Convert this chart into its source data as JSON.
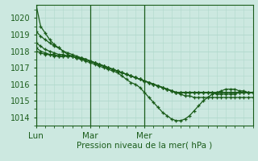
{
  "title": "Pression niveau de la mer( hPa )",
  "bg_color": "#cce8e0",
  "grid_color": "#b0d8cc",
  "line_color": "#1a5c1a",
  "ylim": [
    1013.5,
    1020.8
  ],
  "yticks": [
    1014,
    1015,
    1016,
    1017,
    1018,
    1019,
    1020
  ],
  "xtick_labels": [
    "Lun",
    "Mar",
    "Mer"
  ],
  "xtick_pos": [
    0,
    0.5,
    1.0
  ],
  "xlabel_fontsize": 7.5,
  "ylabel_fontsize": 7.0,
  "series": [
    [
      1020.8,
      1019.5,
      1019.1,
      1018.7,
      1018.4,
      1018.2,
      1018.0,
      1017.8,
      1017.7,
      1017.6,
      1017.5,
      1017.4,
      1017.3,
      1017.2,
      1017.1,
      1017.0,
      1016.9,
      1016.8,
      1016.7,
      1016.5,
      1016.3,
      1016.1,
      1016.0,
      1015.8,
      1015.5,
      1015.2,
      1014.9,
      1014.6,
      1014.3,
      1014.1,
      1013.9,
      1013.8,
      1013.8,
      1013.9,
      1014.1,
      1014.4,
      1014.7,
      1015.0,
      1015.2,
      1015.4,
      1015.5,
      1015.6,
      1015.7,
      1015.7,
      1015.7,
      1015.6,
      1015.6,
      1015.5,
      1015.5
    ],
    [
      1019.2,
      1018.9,
      1018.7,
      1018.5,
      1018.3,
      1018.2,
      1018.0,
      1017.9,
      1017.8,
      1017.7,
      1017.6,
      1017.5,
      1017.4,
      1017.3,
      1017.2,
      1017.1,
      1017.0,
      1016.9,
      1016.8,
      1016.7,
      1016.6,
      1016.5,
      1016.4,
      1016.3,
      1016.2,
      1016.1,
      1016.0,
      1015.9,
      1015.8,
      1015.7,
      1015.6,
      1015.5,
      1015.5,
      1015.5,
      1015.5,
      1015.5,
      1015.5,
      1015.5,
      1015.5,
      1015.5,
      1015.5,
      1015.5,
      1015.5,
      1015.5,
      1015.5,
      1015.5,
      1015.5,
      1015.5,
      1015.5
    ],
    [
      1018.5,
      1018.3,
      1018.1,
      1018.0,
      1017.9,
      1017.8,
      1017.8,
      1017.7,
      1017.7,
      1017.6,
      1017.5,
      1017.5,
      1017.4,
      1017.3,
      1017.2,
      1017.1,
      1017.0,
      1016.9,
      1016.8,
      1016.7,
      1016.6,
      1016.5,
      1016.4,
      1016.3,
      1016.2,
      1016.1,
      1016.0,
      1015.9,
      1015.8,
      1015.7,
      1015.6,
      1015.5,
      1015.5,
      1015.5,
      1015.5,
      1015.5,
      1015.5,
      1015.5,
      1015.5,
      1015.5,
      1015.4,
      1015.4,
      1015.4,
      1015.4,
      1015.4,
      1015.5,
      1015.5,
      1015.5,
      1015.5
    ],
    [
      1018.2,
      1018.0,
      1017.9,
      1017.8,
      1017.8,
      1017.7,
      1017.7,
      1017.7,
      1017.7,
      1017.6,
      1017.6,
      1017.5,
      1017.4,
      1017.3,
      1017.2,
      1017.1,
      1017.0,
      1016.9,
      1016.8,
      1016.7,
      1016.6,
      1016.5,
      1016.4,
      1016.3,
      1016.2,
      1016.1,
      1016.0,
      1015.9,
      1015.8,
      1015.7,
      1015.6,
      1015.5,
      1015.5,
      1015.5,
      1015.5,
      1015.5,
      1015.5,
      1015.5,
      1015.5,
      1015.5,
      1015.5,
      1015.5,
      1015.5,
      1015.5,
      1015.5,
      1015.5,
      1015.5,
      1015.5,
      1015.5
    ],
    [
      1018.0,
      1017.9,
      1017.8,
      1017.8,
      1017.7,
      1017.7,
      1017.7,
      1017.7,
      1017.7,
      1017.6,
      1017.6,
      1017.5,
      1017.4,
      1017.3,
      1017.2,
      1017.1,
      1017.0,
      1016.9,
      1016.8,
      1016.7,
      1016.6,
      1016.5,
      1016.4,
      1016.3,
      1016.2,
      1016.1,
      1016.0,
      1015.9,
      1015.8,
      1015.7,
      1015.6,
      1015.5,
      1015.4,
      1015.3,
      1015.3,
      1015.2,
      1015.2,
      1015.2,
      1015.2,
      1015.2,
      1015.2,
      1015.2,
      1015.2,
      1015.2,
      1015.2,
      1015.2,
      1015.2,
      1015.2,
      1015.2
    ]
  ],
  "n_total_points": 49,
  "n_days": 2.0
}
